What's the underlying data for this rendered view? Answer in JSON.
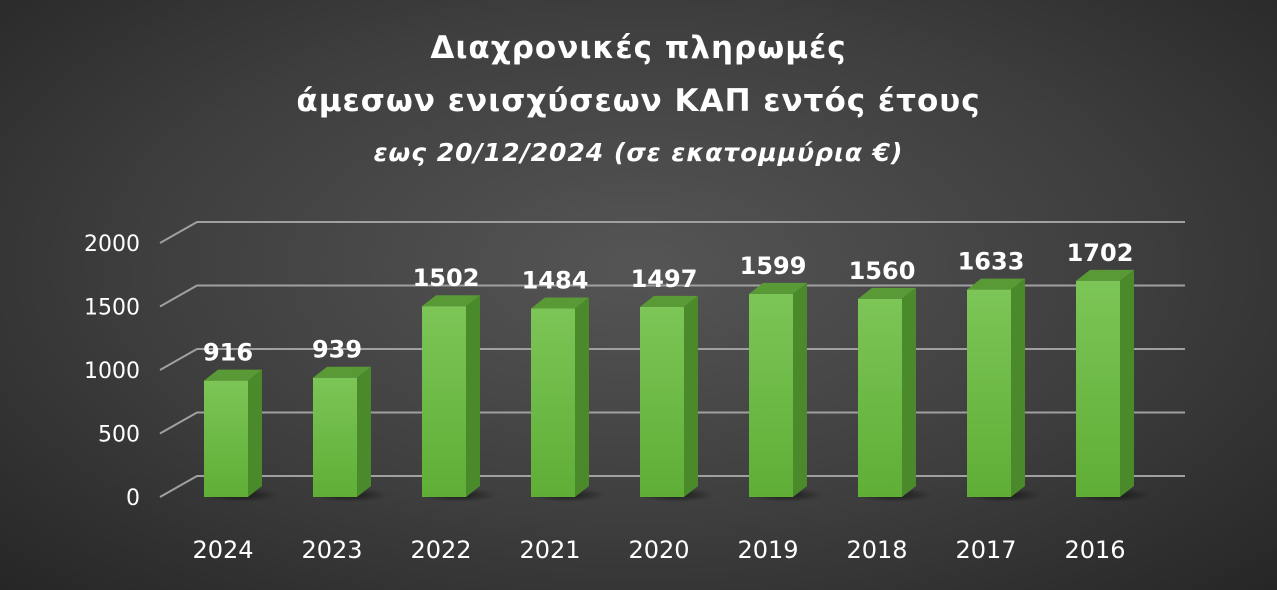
{
  "chart_data": {
    "type": "bar",
    "title": "Διαχρονικές πληρωμές",
    "title_line2": "άμεσων ενισχύσεων ΚΑΠ εντός έτους",
    "subtitle": "εως 20/12/2024 (σε εκατομμύρια €)",
    "categories": [
      "2024",
      "2023",
      "2022",
      "2021",
      "2020",
      "2019",
      "2018",
      "2017",
      "2016"
    ],
    "values": [
      916,
      939,
      1502,
      1484,
      1497,
      1599,
      1560,
      1633,
      1702
    ],
    "yticks": [
      "0",
      "500",
      "1000",
      "1500",
      "2000"
    ],
    "ylim": [
      0,
      2000
    ],
    "grid": true,
    "style": "3d-column",
    "colors": {
      "bar_front": "#6fba45",
      "bar_side": "#4a8a2a",
      "bar_top": "#5a9a36",
      "background": "#3e3e3e",
      "text": "#ffffff",
      "grid": "#a0a0a0"
    }
  }
}
